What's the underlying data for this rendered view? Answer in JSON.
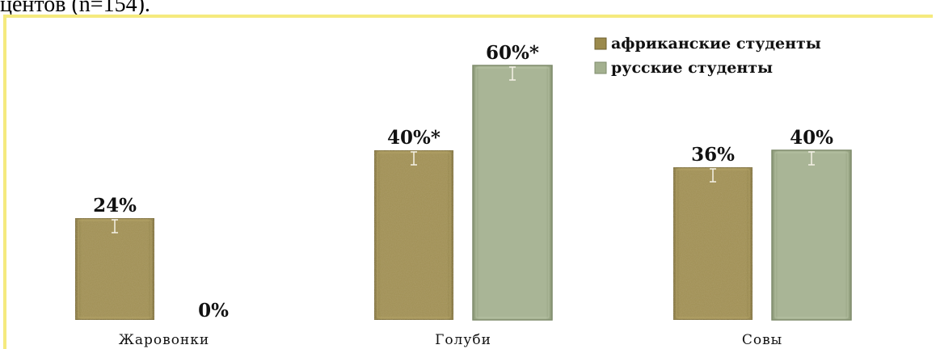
{
  "header": {
    "partial_text": "центов (n=154)."
  },
  "chart_data": {
    "type": "bar",
    "categories": [
      "Жаровонки",
      "Голуби",
      "Совы"
    ],
    "series": [
      {
        "name": "африканские студенты",
        "values": [
          24,
          40,
          36
        ],
        "labels": [
          "24%",
          "40%*",
          "36%"
        ],
        "color": "#9b8a4c"
      },
      {
        "name": "русские студенты",
        "values": [
          0,
          60,
          40
        ],
        "labels": [
          "0%",
          "60%*",
          "40%"
        ],
        "color": "#a3b08f"
      }
    ],
    "ylim": [
      0,
      60
    ],
    "error_bars": true,
    "legend_position": "top-right",
    "grid": false
  },
  "colors": {
    "frame_border": "#f5ea7e",
    "african_bar": "#9b8a4c",
    "russian_bar": "#a3b08f"
  }
}
